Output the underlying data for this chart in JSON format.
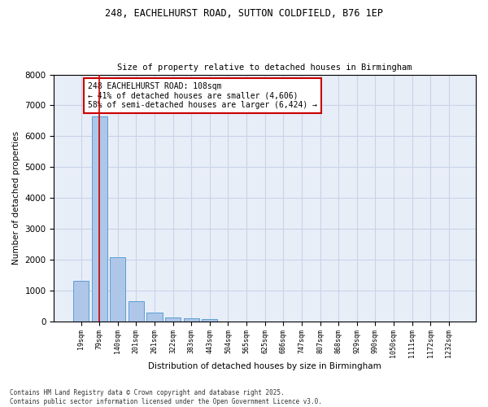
{
  "title_line1": "248, EACHELHURST ROAD, SUTTON COLDFIELD, B76 1EP",
  "title_line2": "Size of property relative to detached houses in Birmingham",
  "xlabel": "Distribution of detached houses by size in Birmingham",
  "ylabel": "Number of detached properties",
  "categories": [
    "19sqm",
    "79sqm",
    "140sqm",
    "201sqm",
    "261sqm",
    "322sqm",
    "383sqm",
    "443sqm",
    "504sqm",
    "565sqm",
    "625sqm",
    "686sqm",
    "747sqm",
    "807sqm",
    "868sqm",
    "929sqm",
    "990sqm",
    "1050sqm",
    "1111sqm",
    "1172sqm",
    "1232sqm"
  ],
  "values": [
    1320,
    6650,
    2080,
    640,
    285,
    120,
    100,
    60,
    0,
    0,
    0,
    0,
    0,
    0,
    0,
    0,
    0,
    0,
    0,
    0,
    0
  ],
  "bar_color": "#aec6e8",
  "bar_edge_color": "#5a9fd4",
  "vline_x": 1.0,
  "vline_color": "#cc0000",
  "annotation_text": "248 EACHELHURST ROAD: 108sqm\n← 41% of detached houses are smaller (4,606)\n58% of semi-detached houses are larger (6,424) →",
  "annotation_box_color": "#ffffff",
  "annotation_box_edge": "#cc0000",
  "ylim": [
    0,
    8000
  ],
  "yticks": [
    0,
    1000,
    2000,
    3000,
    4000,
    5000,
    6000,
    7000,
    8000
  ],
  "grid_color": "#c8d4e8",
  "background_color": "#e8eef8",
  "footer_line1": "Contains HM Land Registry data © Crown copyright and database right 2025.",
  "footer_line2": "Contains public sector information licensed under the Open Government Licence v3.0."
}
